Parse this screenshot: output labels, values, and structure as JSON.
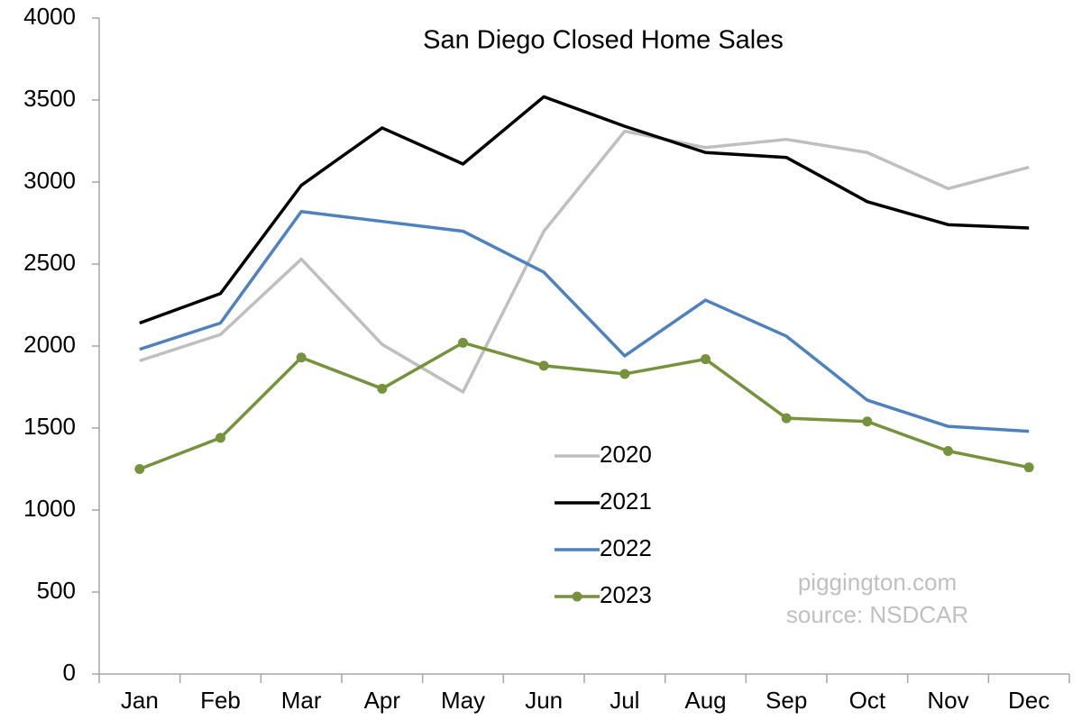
{
  "chart_data": {
    "type": "line",
    "title": "San Diego Closed Home Sales",
    "categories": [
      "Jan",
      "Feb",
      "Mar",
      "Apr",
      "May",
      "Jun",
      "Jul",
      "Aug",
      "Sep",
      "Oct",
      "Nov",
      "Dec"
    ],
    "series": [
      {
        "name": "2020",
        "color": "#bfbfbf",
        "markers": false,
        "values": [
          1910,
          2070,
          2530,
          2010,
          1720,
          2700,
          3310,
          3210,
          3260,
          3180,
          2960,
          3090
        ]
      },
      {
        "name": "2021",
        "color": "#000000",
        "markers": false,
        "values": [
          2140,
          2320,
          2980,
          3330,
          3110,
          3520,
          3340,
          3180,
          3150,
          2880,
          2740,
          2720
        ]
      },
      {
        "name": "2022",
        "color": "#4f81bd",
        "markers": false,
        "values": [
          1980,
          2140,
          2820,
          2760,
          2700,
          2450,
          1940,
          2280,
          2060,
          1670,
          1510,
          1480
        ]
      },
      {
        "name": "2023",
        "color": "#76923c",
        "markers": true,
        "values": [
          1250,
          1440,
          1930,
          1740,
          2020,
          1880,
          1830,
          1920,
          1560,
          1540,
          1360,
          1260
        ]
      }
    ],
    "ylim": [
      0,
      4000
    ],
    "yticks": [
      0,
      500,
      1000,
      1500,
      2000,
      2500,
      3000,
      3500,
      4000
    ],
    "grid": false,
    "annotations": [
      "piggington.com",
      "source: NSDCAR"
    ]
  }
}
